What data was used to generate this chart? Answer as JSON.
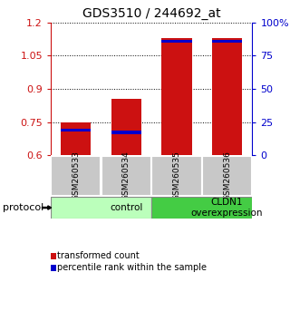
{
  "title": "GDS3510 / 244692_at",
  "samples": [
    "GSM260533",
    "GSM260534",
    "GSM260535",
    "GSM260536"
  ],
  "red_values": [
    0.75,
    0.855,
    1.13,
    1.13
  ],
  "blue_values": [
    0.715,
    0.703,
    1.115,
    1.115
  ],
  "y_min": 0.6,
  "y_max": 1.2,
  "y_ticks_left": [
    0.6,
    0.75,
    0.9,
    1.05,
    1.2
  ],
  "y_ticks_right": [
    0,
    25,
    50,
    75,
    100
  ],
  "y_ticks_right_labels": [
    "0",
    "25",
    "50",
    "75",
    "100%"
  ],
  "groups": [
    {
      "label": "control",
      "start": 0,
      "end": 2,
      "color": "#bbffbb"
    },
    {
      "label": "CLDN1\noverexpression",
      "start": 2,
      "end": 4,
      "color": "#44cc44"
    }
  ],
  "bar_color": "#cc1111",
  "blue_color": "#0000cc",
  "bar_width": 0.6,
  "background_color": "#ffffff",
  "sample_box_color": "#c8c8c8",
  "legend_red_label": "transformed count",
  "legend_blue_label": "percentile rank within the sample",
  "protocol_label": "protocol"
}
